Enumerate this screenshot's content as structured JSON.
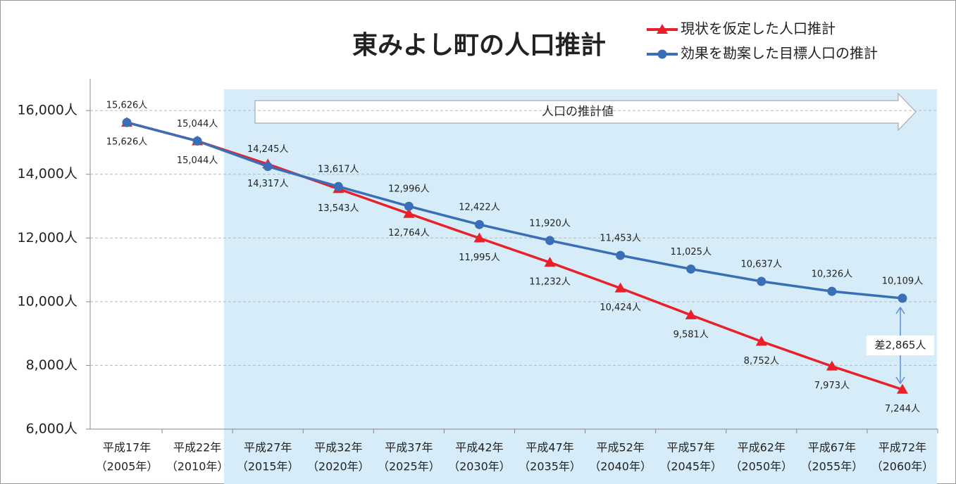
{
  "chart_data": {
    "type": "line",
    "title": "東みよし町の人口推計",
    "categories": [
      [
        "平成17年",
        "（2005年）"
      ],
      [
        "平成22年",
        "（2010年）"
      ],
      [
        "平成27年",
        "（2015年）"
      ],
      [
        "平成32年",
        "（2020年）"
      ],
      [
        "平成37年",
        "（2025年）"
      ],
      [
        "平成42年",
        "（2030年）"
      ],
      [
        "平成47年",
        "（2035年）"
      ],
      [
        "平成52年",
        "（2040年）"
      ],
      [
        "平成57年",
        "（2045年）"
      ],
      [
        "平成62年",
        "（2050年）"
      ],
      [
        "平成67年",
        "（2055年）"
      ],
      [
        "平成72年",
        "（2060年）"
      ]
    ],
    "series": [
      {
        "name": "現状を仮定した人口推計",
        "color": "#e8202a",
        "marker": "triangle",
        "values": [
          15626,
          15044,
          14317,
          13543,
          12764,
          11995,
          11232,
          10424,
          9581,
          8752,
          7973,
          7244
        ],
        "value_labels": [
          "15,626人",
          "15,044人",
          "14,317人",
          "13,543人",
          "12,764人",
          "11,995人",
          "11,232人",
          "10,424人",
          "9,581人",
          "8,752人",
          "7,973人",
          "7,244人"
        ]
      },
      {
        "name": "効果を勘案した目標人口の推計",
        "color": "#3a6fb8",
        "marker": "circle",
        "values": [
          15626,
          15044,
          14245,
          13617,
          12996,
          12422,
          11920,
          11453,
          11025,
          10637,
          10326,
          10109
        ],
        "value_labels": [
          "15,626人",
          "15,044人",
          "14,245人",
          "13,617人",
          "12,996人",
          "12,422人",
          "11,920人",
          "11,453人",
          "11,025人",
          "10,637人",
          "10,326人",
          "10,109人"
        ]
      }
    ],
    "ylim": [
      6000,
      16600
    ],
    "yticks": [
      {
        "value": 6000,
        "label": "6,000人"
      },
      {
        "value": 8000,
        "label": "8,000人"
      },
      {
        "value": 10000,
        "label": "10,000人"
      },
      {
        "value": 12000,
        "label": "12,000人"
      },
      {
        "value": 14000,
        "label": "14,000人"
      },
      {
        "value": 16000,
        "label": "16,000人"
      }
    ],
    "grid": true,
    "annotations": {
      "projection": "人口の推計値",
      "difference": "差2,865人"
    }
  }
}
